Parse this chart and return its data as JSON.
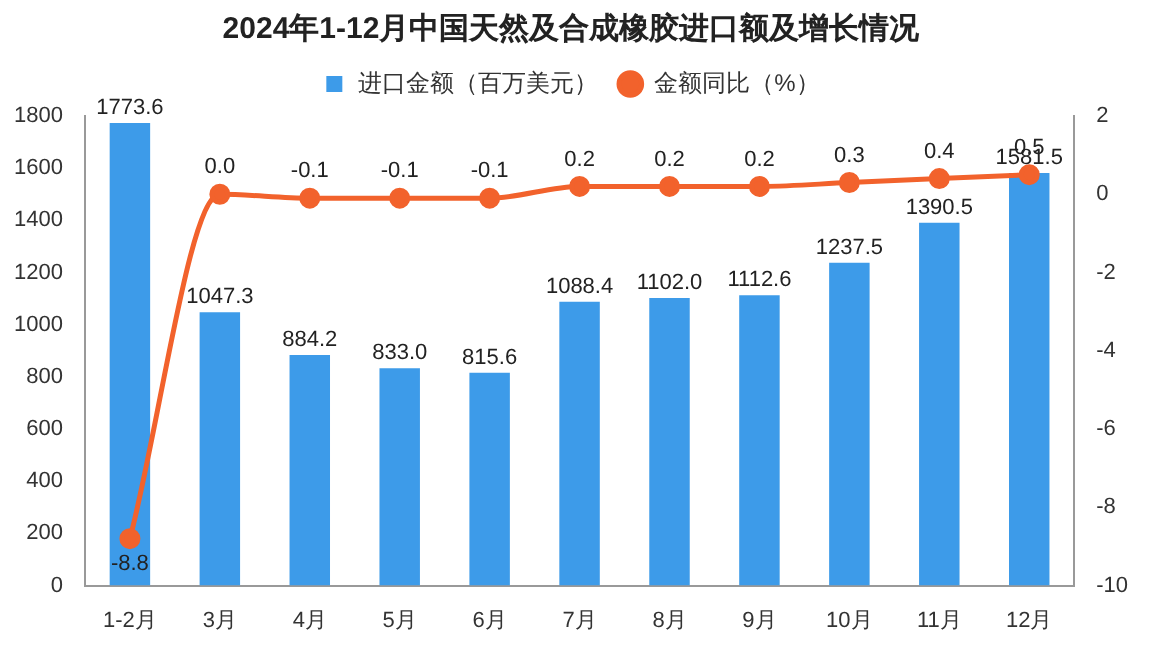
{
  "chart_data": {
    "type": "bar",
    "title": "2024年1-12月中国天然及合成橡胶进口额及增长情况",
    "categories": [
      "1-2月",
      "3月",
      "4月",
      "5月",
      "6月",
      "7月",
      "8月",
      "9月",
      "10月",
      "11月",
      "12月"
    ],
    "series": [
      {
        "name": "进口金额（百万美元）",
        "color": "#3d9be9",
        "values": [
          1773.6,
          1047.3,
          884.2,
          833.0,
          815.6,
          1088.4,
          1102.0,
          1112.6,
          1237.5,
          1390.5,
          1581.5
        ],
        "value_labels": [
          "1773.6",
          "1047.3",
          "884.2",
          "833.0",
          "815.6",
          "1088.4",
          "1102.0",
          "1112.6",
          "1237.5",
          "1390.5",
          "1581.5"
        ]
      },
      {
        "name": "金额同比（%）",
        "type": "line",
        "axis": "y2",
        "color": "#f2622c",
        "marker": "circle",
        "values": [
          -8.8,
          0.0,
          -0.1,
          -0.1,
          -0.1,
          0.2,
          0.2,
          0.2,
          0.3,
          0.4,
          0.5
        ],
        "value_labels": [
          "-8.8",
          "0.0",
          "-0.1",
          "-0.1",
          "-0.1",
          "0.2",
          "0.2",
          "0.2",
          "0.3",
          "0.4",
          "0.5"
        ]
      }
    ],
    "ylim": [
      0,
      1800
    ],
    "yticks": [
      0,
      200,
      400,
      600,
      800,
      1000,
      1200,
      1400,
      1600,
      1800
    ],
    "y2lim": [
      -10,
      2
    ],
    "y2ticks": [
      -10,
      -8,
      -6,
      -4,
      -2,
      0,
      2
    ],
    "legend": "top",
    "grid": false
  }
}
